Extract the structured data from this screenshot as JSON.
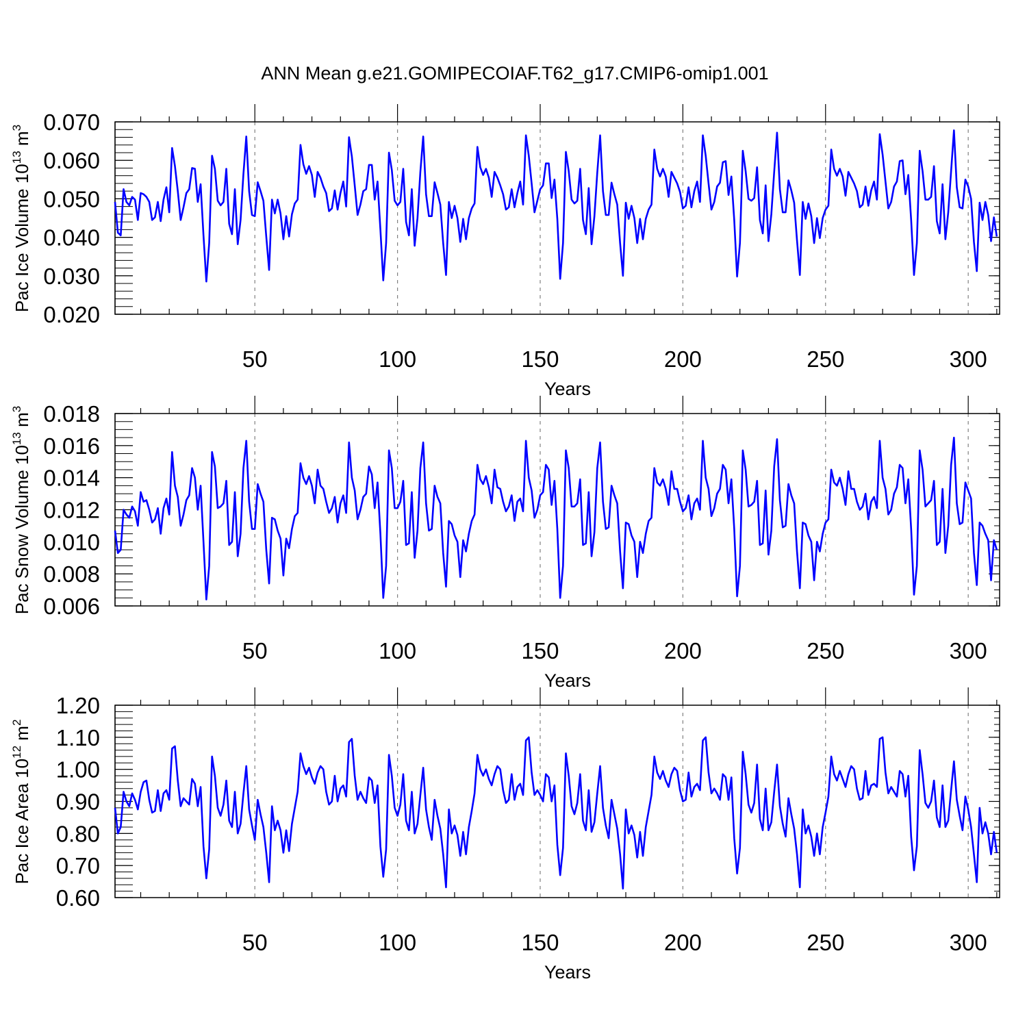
{
  "title": "ANN Mean g.e21.GOMIPECOIAF.T62_g17.CMIP6-omip1.001",
  "colors": {
    "line": "#0000ff",
    "axis": "#000000",
    "grid": "#808080"
  },
  "chart_data": [
    {
      "type": "line",
      "ylabel_base": "Pac Ice Volume 10",
      "ylabel_exp": "13",
      "ylabel_unit": " m",
      "ylabel_unit_exp": "3",
      "xlabel": "Years",
      "xlim": [
        1,
        311
      ],
      "ylim": [
        0.02,
        0.07
      ],
      "yticks": [
        0.02,
        0.03,
        0.04,
        0.05,
        0.06,
        0.07
      ],
      "ytick_labels": [
        "0.020",
        "0.030",
        "0.040",
        "0.050",
        "0.060",
        "0.070"
      ],
      "yminor_step": 0.002,
      "xticks": [
        50,
        100,
        150,
        200,
        250,
        300
      ],
      "xtick_labels": [
        "50",
        "100",
        "150",
        "200",
        "250",
        "300"
      ],
      "x_start": 1,
      "values": [
        0.0492,
        0.0412,
        0.0405,
        0.0525,
        0.0492,
        0.0483,
        0.0505,
        0.0498,
        0.0445,
        0.0515,
        0.0512,
        0.0505,
        0.0492,
        0.0445,
        0.0452,
        0.0492,
        0.0442,
        0.0498,
        0.053,
        0.0465,
        0.0632,
        0.0585,
        0.052,
        0.0445,
        0.0478,
        0.0515,
        0.0525,
        0.058,
        0.0578,
        0.0492,
        0.0538,
        0.0405,
        0.0285,
        0.0385,
        0.0612,
        0.0578,
        0.0495,
        0.0483,
        0.0492,
        0.0578,
        0.0435,
        0.0408,
        0.0525,
        0.0382,
        0.0445,
        0.0565,
        0.0662,
        0.052,
        0.0458,
        0.0455,
        0.0543,
        0.052,
        0.0495,
        0.0402,
        0.0315,
        0.0498,
        0.0462,
        0.0498,
        0.0462,
        0.0395,
        0.0455,
        0.0402,
        0.046,
        0.0488,
        0.0498,
        0.064,
        0.059,
        0.0565,
        0.0585,
        0.0562,
        0.0505,
        0.057,
        0.0555,
        0.0532,
        0.0515,
        0.0468,
        0.0475,
        0.0522,
        0.0472,
        0.0515,
        0.0545,
        0.048,
        0.066,
        0.061,
        0.0535,
        0.0458,
        0.0485,
        0.052,
        0.0525,
        0.0588,
        0.0588,
        0.0498,
        0.0545,
        0.042,
        0.0288,
        0.0385,
        0.062,
        0.0575,
        0.0495,
        0.0483,
        0.0492,
        0.0578,
        0.044,
        0.0405,
        0.0525,
        0.0378,
        0.045,
        0.057,
        0.0662,
        0.0512,
        0.0455,
        0.0455,
        0.0543,
        0.0515,
        0.0485,
        0.0385,
        0.0302,
        0.0492,
        0.045,
        0.0482,
        0.045,
        0.0388,
        0.0448,
        0.0395,
        0.045,
        0.0475,
        0.0488,
        0.0635,
        0.0582,
        0.0562,
        0.0578,
        0.0555,
        0.0505,
        0.057,
        0.0555,
        0.0535,
        0.0512,
        0.0472,
        0.0478,
        0.0525,
        0.0478,
        0.0515,
        0.0545,
        0.0485,
        0.0665,
        0.0612,
        0.054,
        0.0465,
        0.0495,
        0.0525,
        0.0535,
        0.0592,
        0.0592,
        0.0502,
        0.055,
        0.0448,
        0.0292,
        0.0385,
        0.0622,
        0.0572,
        0.0498,
        0.0488,
        0.0495,
        0.0578,
        0.0445,
        0.0408,
        0.0528,
        0.0382,
        0.0455,
        0.0568,
        0.0665,
        0.052,
        0.0458,
        0.0458,
        0.0542,
        0.0512,
        0.0485,
        0.0385,
        0.03,
        0.049,
        0.0448,
        0.0482,
        0.045,
        0.0385,
        0.0448,
        0.0395,
        0.0448,
        0.0472,
        0.0485,
        0.0628,
        0.0578,
        0.0558,
        0.0578,
        0.0558,
        0.0505,
        0.057,
        0.0555,
        0.054,
        0.0518,
        0.0475,
        0.0482,
        0.053,
        0.0478,
        0.052,
        0.0545,
        0.0492,
        0.0665,
        0.0612,
        0.054,
        0.0472,
        0.0492,
        0.0532,
        0.0542,
        0.0595,
        0.0598,
        0.051,
        0.0558,
        0.0445,
        0.0298,
        0.0385,
        0.0625,
        0.0572,
        0.05,
        0.0495,
        0.0502,
        0.0582,
        0.0445,
        0.041,
        0.0535,
        0.039,
        0.046,
        0.057,
        0.0672,
        0.0525,
        0.0465,
        0.0465,
        0.0548,
        0.0522,
        0.049,
        0.0392,
        0.0302,
        0.0492,
        0.0448,
        0.0488,
        0.0455,
        0.0385,
        0.045,
        0.0398,
        0.045,
        0.0472,
        0.0482,
        0.0628,
        0.0578,
        0.056,
        0.0578,
        0.0558,
        0.0508,
        0.057,
        0.0555,
        0.054,
        0.052,
        0.0478,
        0.0485,
        0.0532,
        0.0482,
        0.0522,
        0.0545,
        0.0498,
        0.0668,
        0.0615,
        0.0545,
        0.0475,
        0.0492,
        0.0532,
        0.0545,
        0.0598,
        0.06,
        0.0512,
        0.0562,
        0.0445,
        0.0302,
        0.0385,
        0.0625,
        0.0572,
        0.0498,
        0.0498,
        0.0505,
        0.0585,
        0.0442,
        0.041,
        0.0538,
        0.0395,
        0.0465,
        0.0572,
        0.0678,
        0.053,
        0.0478,
        0.0475,
        0.055,
        0.0532,
        0.05,
        0.0388,
        0.0312,
        0.049,
        0.0445,
        0.0492,
        0.0458,
        0.039,
        0.0452,
        0.0402
      ]
    },
    {
      "type": "line",
      "ylabel_base": "Pac Snow Volume 10",
      "ylabel_exp": "13",
      "ylabel_unit": " m",
      "ylabel_unit_exp": "3",
      "xlabel": "Years",
      "xlim": [
        1,
        311
      ],
      "ylim": [
        0.006,
        0.018
      ],
      "yticks": [
        0.006,
        0.008,
        0.01,
        0.012,
        0.014,
        0.016,
        0.018
      ],
      "ytick_labels": [
        "0.006",
        "0.008",
        "0.010",
        "0.012",
        "0.014",
        "0.016",
        "0.018"
      ],
      "yminor_step": 0.0005,
      "xticks": [
        50,
        100,
        150,
        200,
        250,
        300
      ],
      "xtick_labels": [
        "50",
        "100",
        "150",
        "200",
        "250",
        "300"
      ],
      "x_start": 1,
      "values": [
        0.0107,
        0.0093,
        0.0095,
        0.012,
        0.0117,
        0.0115,
        0.0122,
        0.0119,
        0.011,
        0.0131,
        0.0125,
        0.0126,
        0.012,
        0.0112,
        0.0114,
        0.0121,
        0.0105,
        0.0121,
        0.0127,
        0.0117,
        0.0156,
        0.0135,
        0.0128,
        0.011,
        0.0117,
        0.0126,
        0.0129,
        0.0146,
        0.014,
        0.012,
        0.0135,
        0.01,
        0.0064,
        0.0085,
        0.0156,
        0.0147,
        0.0121,
        0.0122,
        0.0124,
        0.0138,
        0.0098,
        0.01,
        0.0131,
        0.0091,
        0.0105,
        0.0146,
        0.0163,
        0.0125,
        0.0108,
        0.0108,
        0.0136,
        0.013,
        0.0125,
        0.0095,
        0.0074,
        0.0115,
        0.0114,
        0.0107,
        0.0102,
        0.0079,
        0.0102,
        0.0096,
        0.0108,
        0.0116,
        0.0118,
        0.0149,
        0.014,
        0.0136,
        0.0141,
        0.0135,
        0.0124,
        0.0145,
        0.0135,
        0.0133,
        0.0125,
        0.0118,
        0.0121,
        0.0128,
        0.0112,
        0.0124,
        0.0129,
        0.0118,
        0.0162,
        0.014,
        0.0132,
        0.0114,
        0.012,
        0.0128,
        0.013,
        0.0147,
        0.0142,
        0.0121,
        0.0137,
        0.0105,
        0.0065,
        0.0085,
        0.0157,
        0.0146,
        0.0121,
        0.0121,
        0.0125,
        0.0138,
        0.0098,
        0.0099,
        0.0131,
        0.009,
        0.0107,
        0.0146,
        0.0162,
        0.0124,
        0.0107,
        0.0108,
        0.0135,
        0.0128,
        0.0124,
        0.0093,
        0.0072,
        0.0113,
        0.0111,
        0.0104,
        0.01,
        0.0078,
        0.0101,
        0.0094,
        0.0105,
        0.0113,
        0.0117,
        0.0148,
        0.0139,
        0.0136,
        0.0141,
        0.0134,
        0.0124,
        0.0145,
        0.0134,
        0.0133,
        0.0125,
        0.0119,
        0.0122,
        0.0129,
        0.0113,
        0.0125,
        0.0127,
        0.0119,
        0.0163,
        0.014,
        0.0132,
        0.0115,
        0.012,
        0.0129,
        0.0131,
        0.0148,
        0.0145,
        0.0123,
        0.0138,
        0.0108,
        0.0065,
        0.0085,
        0.0157,
        0.0146,
        0.0122,
        0.0122,
        0.0124,
        0.0139,
        0.0098,
        0.0099,
        0.0131,
        0.0091,
        0.0106,
        0.0146,
        0.0162,
        0.0125,
        0.0108,
        0.0109,
        0.0135,
        0.0129,
        0.0124,
        0.0094,
        0.0071,
        0.0112,
        0.0111,
        0.0104,
        0.01,
        0.0078,
        0.01,
        0.0093,
        0.0105,
        0.0113,
        0.0115,
        0.0146,
        0.0137,
        0.0135,
        0.0139,
        0.0133,
        0.0123,
        0.0144,
        0.0133,
        0.0133,
        0.0125,
        0.0119,
        0.0121,
        0.0129,
        0.0114,
        0.0124,
        0.0127,
        0.012,
        0.0163,
        0.014,
        0.0133,
        0.0116,
        0.0121,
        0.013,
        0.0133,
        0.0148,
        0.0145,
        0.0124,
        0.0139,
        0.0108,
        0.0066,
        0.0085,
        0.0157,
        0.0145,
        0.0122,
        0.0123,
        0.0125,
        0.0138,
        0.0098,
        0.0099,
        0.0132,
        0.0092,
        0.0107,
        0.0147,
        0.0164,
        0.0126,
        0.0109,
        0.011,
        0.0136,
        0.0129,
        0.0124,
        0.0094,
        0.0071,
        0.0112,
        0.0111,
        0.0104,
        0.01,
        0.0076,
        0.01,
        0.0094,
        0.0105,
        0.0112,
        0.0114,
        0.0145,
        0.0137,
        0.0135,
        0.014,
        0.0133,
        0.0123,
        0.0144,
        0.0133,
        0.0133,
        0.0125,
        0.012,
        0.0122,
        0.013,
        0.0114,
        0.0125,
        0.0128,
        0.0121,
        0.0163,
        0.014,
        0.0133,
        0.0117,
        0.012,
        0.013,
        0.0134,
        0.0148,
        0.0146,
        0.0124,
        0.0139,
        0.0108,
        0.0067,
        0.0085,
        0.0157,
        0.0145,
        0.0122,
        0.0124,
        0.0126,
        0.0138,
        0.0098,
        0.01,
        0.0133,
        0.0093,
        0.011,
        0.0148,
        0.0165,
        0.0124,
        0.0111,
        0.0112,
        0.0137,
        0.0132,
        0.0127,
        0.0093,
        0.0073,
        0.0112,
        0.011,
        0.0105,
        0.0101,
        0.0076,
        0.0101,
        0.0095
      ]
    },
    {
      "type": "line",
      "ylabel_base": "Pac Ice Area 10",
      "ylabel_exp": "12",
      "ylabel_unit": " m",
      "ylabel_unit_exp": "2",
      "xlabel": "Years",
      "xlim": [
        1,
        311
      ],
      "ylim": [
        0.6,
        1.2
      ],
      "yticks": [
        0.6,
        0.7,
        0.8,
        0.9,
        1.0,
        1.1,
        1.2
      ],
      "ytick_labels": [
        "0.60",
        "0.70",
        "0.80",
        "0.90",
        "1.00",
        "1.10",
        "1.20"
      ],
      "yminor_step": 0.02,
      "xticks": [
        50,
        100,
        150,
        200,
        250,
        300
      ],
      "xtick_labels": [
        "50",
        "100",
        "150",
        "200",
        "250",
        "300"
      ],
      "x_start": 1,
      "values": [
        0.88,
        0.8,
        0.82,
        0.93,
        0.9,
        0.885,
        0.925,
        0.905,
        0.875,
        0.93,
        0.96,
        0.965,
        0.905,
        0.865,
        0.87,
        0.935,
        0.87,
        0.925,
        0.935,
        0.905,
        1.065,
        1.072,
        0.965,
        0.885,
        0.91,
        0.9,
        0.89,
        0.97,
        0.955,
        0.885,
        0.945,
        0.76,
        0.66,
        0.75,
        1.04,
        0.98,
        0.88,
        0.855,
        0.89,
        0.965,
        0.84,
        0.82,
        0.93,
        0.8,
        0.83,
        0.925,
        1.01,
        0.875,
        0.825,
        0.78,
        0.905,
        0.86,
        0.82,
        0.74,
        0.648,
        0.885,
        0.81,
        0.84,
        0.81,
        0.74,
        0.81,
        0.745,
        0.83,
        0.88,
        0.93,
        1.05,
        1.01,
        0.985,
        1.005,
        0.975,
        0.955,
        0.99,
        1.01,
        1.0,
        0.93,
        0.89,
        0.9,
        0.98,
        0.9,
        0.94,
        0.95,
        0.915,
        1.085,
        1.095,
        0.98,
        0.905,
        0.93,
        0.91,
        0.895,
        0.975,
        0.965,
        0.895,
        0.95,
        0.76,
        0.665,
        0.75,
        1.045,
        0.98,
        0.88,
        0.855,
        0.89,
        0.985,
        0.84,
        0.81,
        0.93,
        0.8,
        0.83,
        0.92,
        1.005,
        0.875,
        0.82,
        0.78,
        0.905,
        0.855,
        0.815,
        0.735,
        0.632,
        0.875,
        0.8,
        0.825,
        0.795,
        0.73,
        0.805,
        0.735,
        0.82,
        0.87,
        0.925,
        1.045,
        1.0,
        0.98,
        1.0,
        0.97,
        0.95,
        0.985,
        1.01,
        1.0,
        0.935,
        0.895,
        0.905,
        0.985,
        0.905,
        0.945,
        0.955,
        0.92,
        1.09,
        1.1,
        0.99,
        0.92,
        0.935,
        0.92,
        0.9,
        0.985,
        0.975,
        0.9,
        0.95,
        0.765,
        0.67,
        0.755,
        1.05,
        0.98,
        0.885,
        0.86,
        0.895,
        0.985,
        0.84,
        0.81,
        0.935,
        0.805,
        0.835,
        0.925,
        1.01,
        0.88,
        0.825,
        0.785,
        0.905,
        0.86,
        0.815,
        0.735,
        0.628,
        0.875,
        0.8,
        0.825,
        0.795,
        0.725,
        0.805,
        0.73,
        0.82,
        0.87,
        0.92,
        1.04,
        0.99,
        0.97,
        0.995,
        0.965,
        0.945,
        0.985,
        1.005,
        0.995,
        0.935,
        0.9,
        0.905,
        0.99,
        0.915,
        0.945,
        0.955,
        0.935,
        1.09,
        1.1,
        0.99,
        0.925,
        0.94,
        0.925,
        0.905,
        0.985,
        0.975,
        0.905,
        0.975,
        0.785,
        0.675,
        0.755,
        1.055,
        0.985,
        0.89,
        0.865,
        0.895,
        1.015,
        0.845,
        0.81,
        0.94,
        0.81,
        0.835,
        0.93,
        1.015,
        0.885,
        0.83,
        0.79,
        0.91,
        0.86,
        0.815,
        0.735,
        0.632,
        0.875,
        0.8,
        0.825,
        0.79,
        0.73,
        0.8,
        0.735,
        0.82,
        0.865,
        0.915,
        1.04,
        0.985,
        0.965,
        0.995,
        0.97,
        0.945,
        0.985,
        1.01,
        1.0,
        0.94,
        0.905,
        0.91,
        0.995,
        0.92,
        0.95,
        0.955,
        0.945,
        1.095,
        1.1,
        0.99,
        0.925,
        0.945,
        0.93,
        0.915,
        0.995,
        0.985,
        0.915,
        0.98,
        0.79,
        0.685,
        0.76,
        1.06,
        0.985,
        0.895,
        0.88,
        0.9,
        0.965,
        0.85,
        0.82,
        0.95,
        0.82,
        0.84,
        0.935,
        1.025,
        0.905,
        0.855,
        0.81,
        0.915,
        0.875,
        0.82,
        0.735,
        0.648,
        0.88,
        0.8,
        0.835,
        0.8,
        0.735,
        0.805,
        0.74
      ]
    }
  ]
}
